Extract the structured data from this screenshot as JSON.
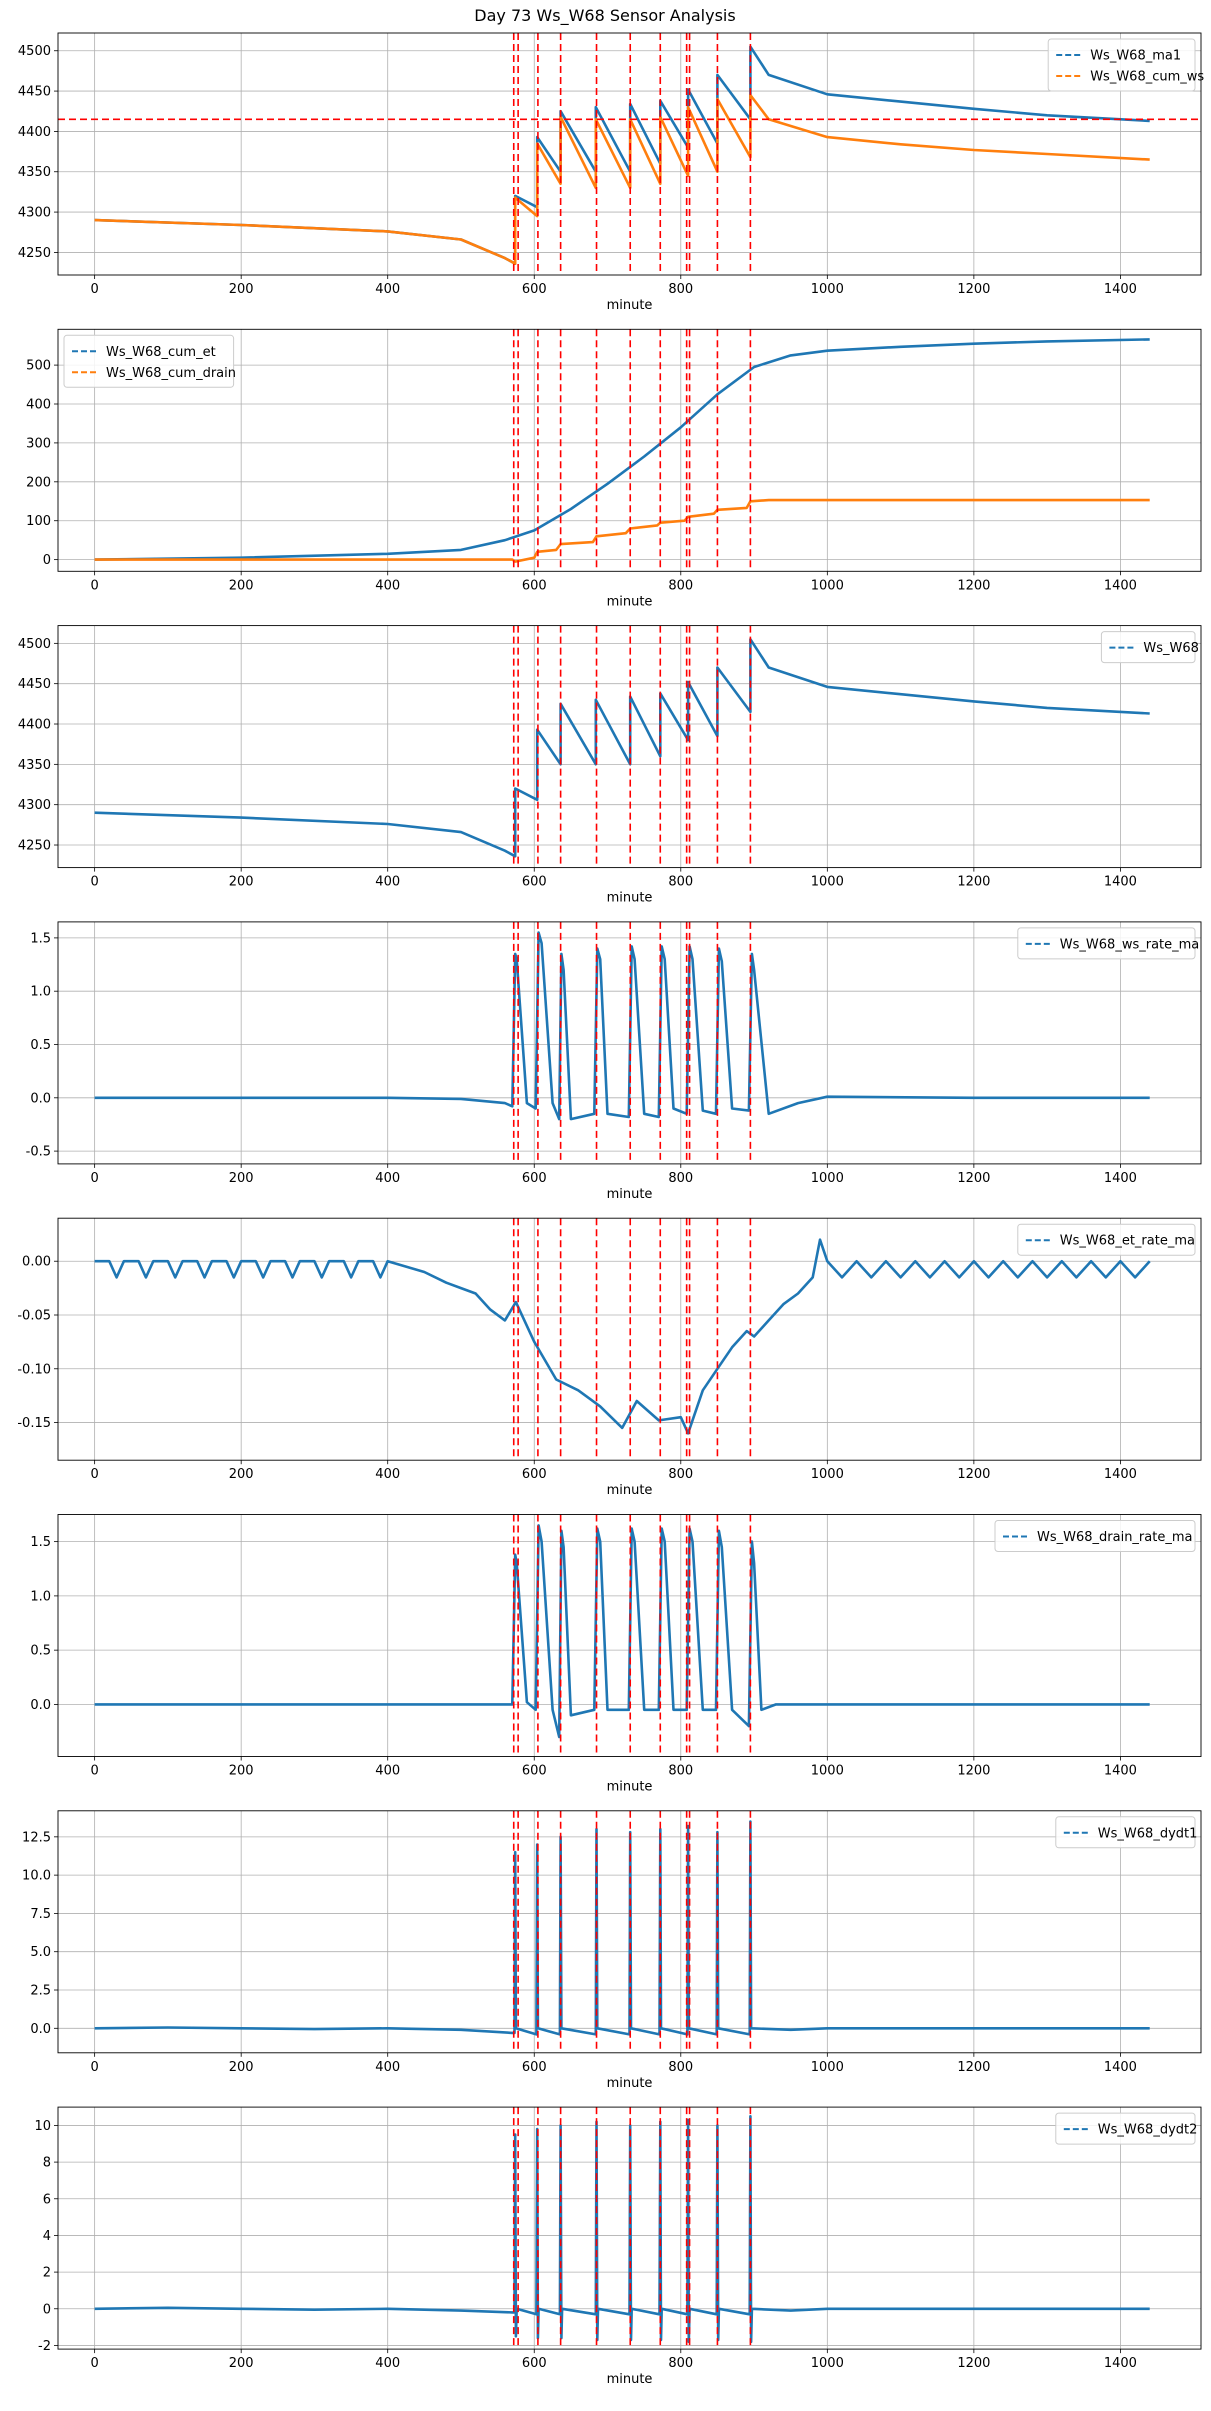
{
  "title": "Day 73 Ws_W68 Sensor Analysis",
  "colors": {
    "blue": "#1f77b4",
    "orange": "#ff7f0e",
    "red": "#ff0000",
    "grid": "#b0b0b0"
  },
  "events": [
    572,
    578,
    605,
    636,
    685,
    731,
    772,
    808,
    812,
    850,
    895
  ],
  "chart_data": [
    {
      "type": "line",
      "xlabel": "minute",
      "xlim": [
        -50,
        1510
      ],
      "ylim": [
        4222,
        4522
      ],
      "xticks": [
        0,
        200,
        400,
        600,
        800,
        1000,
        1200,
        1400
      ],
      "yticks": [
        4250,
        4300,
        4350,
        4400,
        4450,
        4500
      ],
      "legend": "top-right",
      "hline": 4415,
      "series": [
        {
          "name": "Ws_W68_ma1",
          "color": "#1f77b4",
          "x": [
            0,
            200,
            400,
            500,
            560,
            574,
            574,
            604,
            604,
            636,
            636,
            684,
            684,
            731,
            731,
            772,
            772,
            810,
            810,
            850,
            850,
            895,
            895,
            920,
            1000,
            1100,
            1200,
            1300,
            1440
          ],
          "y": [
            4290,
            4284,
            4276,
            4266,
            4243,
            4236,
            4320,
            4306,
            4393,
            4350,
            4425,
            4350,
            4430,
            4350,
            4434,
            4360,
            4438,
            4380,
            4452,
            4385,
            4470,
            4415,
            4505,
            4470,
            4446,
            4437,
            4428,
            4420,
            4413
          ]
        },
        {
          "name": "Ws_W68_cum_ws",
          "color": "#ff7f0e",
          "x": [
            0,
            200,
            400,
            500,
            560,
            574,
            574,
            604,
            604,
            636,
            636,
            684,
            684,
            731,
            731,
            772,
            772,
            810,
            810,
            850,
            850,
            895,
            895,
            920,
            1000,
            1100,
            1200,
            1300,
            1440
          ],
          "y": [
            4290,
            4284,
            4276,
            4266,
            4243,
            4236,
            4318,
            4295,
            4385,
            4335,
            4418,
            4330,
            4415,
            4330,
            4415,
            4335,
            4418,
            4345,
            4430,
            4350,
            4440,
            4368,
            4445,
            4415,
            4393,
            4384,
            4377,
            4372,
            4365
          ]
        }
      ]
    },
    {
      "type": "line",
      "xlabel": "minute",
      "xlim": [
        -50,
        1510
      ],
      "ylim": [
        -30,
        592
      ],
      "xticks": [
        0,
        200,
        400,
        600,
        800,
        1000,
        1200,
        1400
      ],
      "yticks": [
        0,
        100,
        200,
        300,
        400,
        500
      ],
      "legend": "top-left",
      "series": [
        {
          "name": "Ws_W68_cum_et",
          "color": "#1f77b4",
          "x": [
            0,
            200,
            400,
            500,
            560,
            600,
            650,
            700,
            750,
            800,
            850,
            900,
            950,
            1000,
            1100,
            1200,
            1300,
            1440
          ],
          "y": [
            0,
            5,
            15,
            25,
            50,
            75,
            130,
            195,
            265,
            340,
            425,
            495,
            525,
            537,
            547,
            555,
            561,
            566
          ]
        },
        {
          "name": "Ws_W68_cum_drain",
          "color": "#ff7f0e",
          "x": [
            0,
            570,
            574,
            600,
            604,
            630,
            636,
            680,
            685,
            725,
            731,
            768,
            772,
            805,
            810,
            845,
            850,
            890,
            895,
            920,
            1440
          ],
          "y": [
            0,
            0,
            -5,
            5,
            20,
            25,
            40,
            45,
            60,
            68,
            80,
            88,
            95,
            100,
            110,
            118,
            128,
            133,
            150,
            153,
            153
          ]
        }
      ]
    },
    {
      "type": "line",
      "xlabel": "minute",
      "xlim": [
        -50,
        1510
      ],
      "ylim": [
        4222,
        4522
      ],
      "xticks": [
        0,
        200,
        400,
        600,
        800,
        1000,
        1200,
        1400
      ],
      "yticks": [
        4250,
        4300,
        4350,
        4400,
        4450,
        4500
      ],
      "legend": "top-right",
      "series": [
        {
          "name": "Ws_W68",
          "color": "#1f77b4",
          "x": [
            0,
            200,
            400,
            500,
            560,
            574,
            574,
            604,
            604,
            636,
            636,
            684,
            684,
            731,
            731,
            772,
            772,
            810,
            810,
            850,
            850,
            895,
            895,
            920,
            1000,
            1100,
            1200,
            1300,
            1440
          ],
          "y": [
            4290,
            4284,
            4276,
            4266,
            4243,
            4236,
            4320,
            4306,
            4393,
            4350,
            4425,
            4350,
            4430,
            4350,
            4434,
            4360,
            4438,
            4380,
            4452,
            4385,
            4470,
            4415,
            4505,
            4470,
            4446,
            4437,
            4428,
            4420,
            4413
          ]
        }
      ]
    },
    {
      "type": "line",
      "xlabel": "minute",
      "xlim": [
        -50,
        1510
      ],
      "ylim": [
        -0.62,
        1.65
      ],
      "xticks": [
        0,
        200,
        400,
        600,
        800,
        1000,
        1200,
        1400
      ],
      "yticks": [
        -0.5,
        0.0,
        0.5,
        1.0,
        1.5
      ],
      "legend": "top-right",
      "series": [
        {
          "name": "Ws_W68_ws_rate_ma",
          "color": "#1f77b4",
          "x": [
            0,
            400,
            500,
            560,
            570,
            574,
            576,
            590,
            602,
            606,
            610,
            625,
            634,
            637,
            640,
            650,
            682,
            686,
            690,
            700,
            729,
            733,
            737,
            750,
            770,
            774,
            778,
            790,
            808,
            812,
            816,
            830,
            848,
            852,
            856,
            870,
            893,
            897,
            900,
            920,
            960,
            1000,
            1200,
            1440
          ],
          "y": [
            0,
            0,
            -0.01,
            -0.05,
            -0.08,
            1.35,
            1.3,
            -0.05,
            -0.1,
            1.55,
            1.45,
            -0.05,
            -0.2,
            1.35,
            1.2,
            -0.2,
            -0.15,
            1.4,
            1.3,
            -0.15,
            -0.18,
            1.42,
            1.3,
            -0.15,
            -0.18,
            1.42,
            1.3,
            -0.1,
            -0.15,
            1.42,
            1.3,
            -0.12,
            -0.15,
            1.4,
            1.28,
            -0.1,
            -0.12,
            1.35,
            1.2,
            -0.15,
            -0.05,
            0.01,
            0,
            0
          ]
        }
      ]
    },
    {
      "type": "line",
      "xlabel": "minute",
      "xlim": [
        -50,
        1510
      ],
      "ylim": [
        -0.185,
        0.04
      ],
      "xticks": [
        0,
        200,
        400,
        600,
        800,
        1000,
        1200,
        1400
      ],
      "yticks": [
        -0.15,
        -0.1,
        -0.05,
        0.0
      ],
      "legend": "top-right",
      "series": [
        {
          "name": "Ws_W68_et_rate_ma",
          "color": "#1f77b4",
          "x": [
            0,
            20,
            30,
            40,
            60,
            70,
            80,
            100,
            110,
            120,
            140,
            150,
            160,
            180,
            190,
            200,
            220,
            230,
            240,
            260,
            270,
            280,
            300,
            310,
            320,
            340,
            350,
            360,
            380,
            390,
            400,
            450,
            480,
            500,
            520,
            540,
            560,
            575,
            600,
            630,
            660,
            690,
            720,
            740,
            770,
            800,
            810,
            830,
            850,
            870,
            890,
            900,
            920,
            940,
            960,
            980,
            990,
            1000,
            1020,
            1040,
            1060,
            1080,
            1100,
            1120,
            1140,
            1160,
            1180,
            1200,
            1220,
            1240,
            1260,
            1280,
            1300,
            1320,
            1340,
            1360,
            1380,
            1400,
            1420,
            1440
          ],
          "y": [
            0,
            0,
            -0.015,
            0,
            0,
            -0.015,
            0,
            0,
            -0.015,
            0,
            0,
            -0.015,
            0,
            0,
            -0.015,
            0,
            0,
            -0.015,
            0,
            0,
            -0.015,
            0,
            0,
            -0.015,
            0,
            0,
            -0.015,
            0,
            0,
            -0.015,
            0,
            -0.01,
            -0.02,
            -0.025,
            -0.03,
            -0.045,
            -0.055,
            -0.038,
            -0.075,
            -0.11,
            -0.12,
            -0.135,
            -0.155,
            -0.13,
            -0.148,
            -0.145,
            -0.16,
            -0.12,
            -0.1,
            -0.08,
            -0.065,
            -0.07,
            -0.055,
            -0.04,
            -0.03,
            -0.015,
            0.02,
            0,
            -0.015,
            0,
            -0.015,
            0,
            -0.015,
            0,
            -0.015,
            0,
            -0.015,
            0,
            -0.015,
            0,
            -0.015,
            0,
            -0.015,
            0,
            -0.015,
            0,
            -0.015,
            0,
            -0.015,
            0
          ]
        }
      ]
    },
    {
      "type": "line",
      "xlabel": "minute",
      "xlim": [
        -50,
        1510
      ],
      "ylim": [
        -0.48,
        1.75
      ],
      "xticks": [
        0,
        200,
        400,
        600,
        800,
        1000,
        1200,
        1400
      ],
      "yticks": [
        0.0,
        0.5,
        1.0,
        1.5
      ],
      "legend": "top-right",
      "series": [
        {
          "name": "Ws_W68_drain_rate_ma",
          "color": "#1f77b4",
          "x": [
            0,
            570,
            574,
            576,
            590,
            602,
            606,
            610,
            625,
            634,
            637,
            640,
            650,
            682,
            686,
            690,
            700,
            729,
            733,
            737,
            750,
            770,
            774,
            778,
            790,
            808,
            812,
            816,
            830,
            848,
            852,
            856,
            870,
            893,
            897,
            900,
            910,
            930,
            1440
          ],
          "y": [
            0,
            0,
            1.38,
            1.3,
            0.02,
            -0.05,
            1.65,
            1.5,
            -0.05,
            -0.3,
            1.6,
            1.45,
            -0.1,
            -0.05,
            1.62,
            1.5,
            -0.05,
            -0.05,
            1.62,
            1.5,
            -0.05,
            -0.05,
            1.62,
            1.5,
            -0.05,
            -0.05,
            1.62,
            1.5,
            -0.05,
            -0.05,
            1.6,
            1.45,
            -0.05,
            -0.2,
            1.5,
            1.3,
            -0.05,
            0,
            0
          ]
        }
      ]
    },
    {
      "type": "line",
      "xlabel": "minute",
      "xlim": [
        -50,
        1510
      ],
      "ylim": [
        -1.6,
        14.2
      ],
      "xticks": [
        0,
        200,
        400,
        600,
        800,
        1000,
        1200,
        1400
      ],
      "yticks": [
        0.0,
        2.5,
        5.0,
        7.5,
        10.0,
        12.5
      ],
      "legend": "top-right",
      "series": [
        {
          "name": "Ws_W68_dydt1",
          "color": "#1f77b4",
          "x": [
            0,
            100,
            200,
            300,
            400,
            500,
            570,
            573,
            574,
            575,
            603,
            604,
            605,
            635,
            636,
            637,
            684,
            685,
            686,
            730,
            731,
            732,
            771,
            772,
            773,
            809,
            810,
            811,
            849,
            850,
            851,
            894,
            895,
            896,
            950,
            1000,
            1200,
            1440
          ],
          "y": [
            0,
            0.05,
            0,
            -0.05,
            0,
            -0.1,
            -0.3,
            -0.3,
            11.5,
            0,
            -0.4,
            12.0,
            0,
            -0.4,
            12.5,
            0,
            -0.4,
            13.0,
            0,
            -0.4,
            12.8,
            0,
            -0.4,
            13.0,
            0,
            -0.4,
            13.2,
            0,
            -0.4,
            12.8,
            0,
            -0.4,
            13.5,
            0,
            -0.1,
            0,
            0,
            0
          ]
        }
      ]
    },
    {
      "type": "line",
      "xlabel": "minute",
      "xlim": [
        -50,
        1510
      ],
      "ylim": [
        -2.2,
        11.0
      ],
      "xticks": [
        0,
        200,
        400,
        600,
        800,
        1000,
        1200,
        1400
      ],
      "yticks": [
        -2,
        0,
        2,
        4,
        6,
        8,
        10
      ],
      "legend": "top-right",
      "series": [
        {
          "name": "Ws_W68_dydt2",
          "color": "#1f77b4",
          "x": [
            0,
            100,
            200,
            300,
            400,
            500,
            570,
            573,
            574,
            575,
            576,
            603,
            604,
            605,
            606,
            635,
            636,
            637,
            638,
            684,
            685,
            686,
            687,
            730,
            731,
            732,
            733,
            771,
            772,
            773,
            774,
            809,
            810,
            811,
            812,
            849,
            850,
            851,
            852,
            894,
            895,
            896,
            897,
            950,
            1000,
            1200,
            1440
          ],
          "y": [
            0,
            0.05,
            0,
            -0.05,
            0,
            -0.1,
            -0.2,
            -0.2,
            9.5,
            -1.5,
            0,
            -0.3,
            9.8,
            -1.6,
            0,
            -0.3,
            10.0,
            -1.6,
            0,
            -0.3,
            10.2,
            -1.7,
            0,
            -0.3,
            10.0,
            -1.7,
            0,
            -0.3,
            10.2,
            -1.7,
            0,
            -0.3,
            10.3,
            -1.8,
            0,
            -0.3,
            10.0,
            -1.7,
            0,
            -0.3,
            10.5,
            -1.8,
            0,
            -0.1,
            0,
            0,
            0
          ]
        }
      ]
    }
  ]
}
